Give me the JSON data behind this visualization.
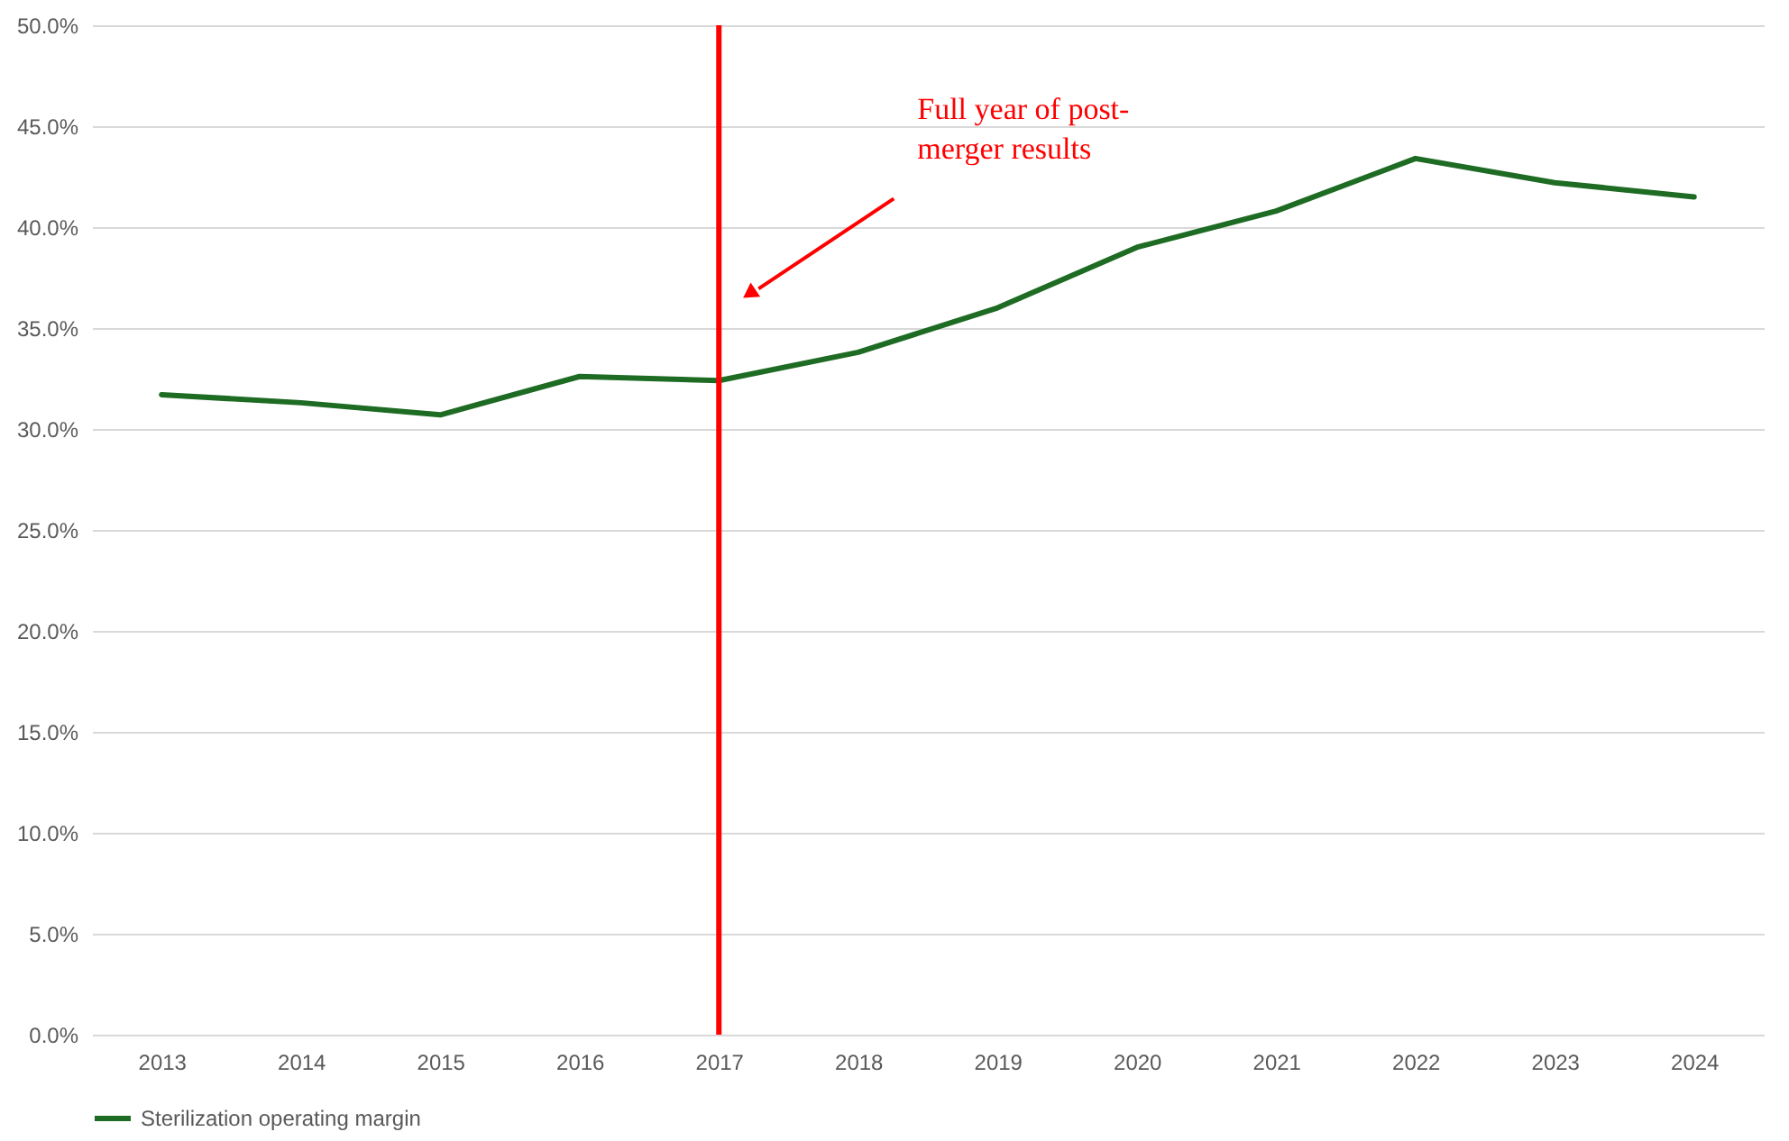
{
  "chart_data": {
    "type": "line",
    "categories": [
      "2013",
      "2014",
      "2015",
      "2016",
      "2017",
      "2018",
      "2019",
      "2020",
      "2021",
      "2022",
      "2023",
      "2024"
    ],
    "series": [
      {
        "name": "Sterilization operating margin",
        "color": "#1e6b24",
        "values": [
          31.7,
          31.3,
          30.7,
          32.6,
          32.4,
          33.8,
          36.0,
          39.0,
          40.8,
          43.4,
          42.2,
          41.5
        ]
      }
    ],
    "ylim": [
      0,
      50
    ],
    "yticks": [
      {
        "value": 0,
        "label": "0.0%"
      },
      {
        "value": 5,
        "label": "5.0%"
      },
      {
        "value": 10,
        "label": "10.0%"
      },
      {
        "value": 15,
        "label": "15.0%"
      },
      {
        "value": 20,
        "label": "20.0%"
      },
      {
        "value": 25,
        "label": "25.0%"
      },
      {
        "value": 30,
        "label": "30.0%"
      },
      {
        "value": 35,
        "label": "35.0%"
      },
      {
        "value": 40,
        "label": "40.0%"
      },
      {
        "value": 45,
        "label": "45.0%"
      },
      {
        "value": 50,
        "label": "50.0%"
      }
    ],
    "ref_lines": [
      {
        "axis": "x",
        "value": "2017",
        "color": "#ff0000"
      }
    ],
    "annotations": [
      "Full year of post-merger results"
    ],
    "grid": "y",
    "legend": "bottom",
    "marker": "none",
    "line_style": "solid"
  }
}
